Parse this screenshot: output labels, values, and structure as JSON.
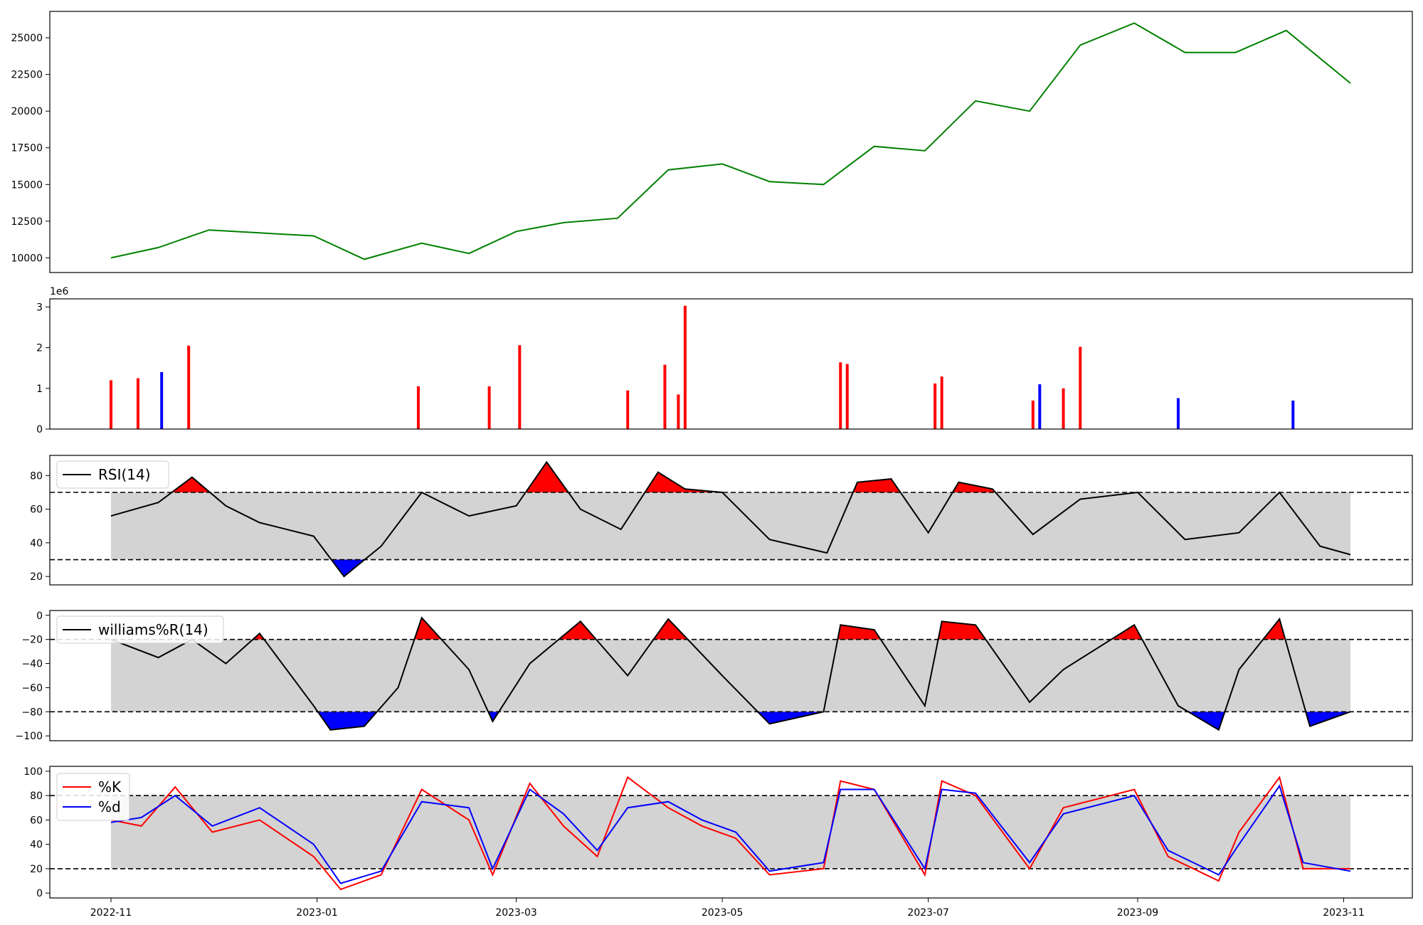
{
  "chart_data": [
    {
      "type": "line",
      "panel": "price",
      "color": "#008000",
      "ylim": [
        9000,
        26800
      ],
      "yticks": [
        10000,
        12500,
        15000,
        17500,
        20000,
        22500,
        25000
      ],
      "x": [
        "2022-11-01",
        "2022-11-15",
        "2022-11-30",
        "2022-12-15",
        "2022-12-31",
        "2023-01-15",
        "2023-02-01",
        "2023-02-15",
        "2023-03-01",
        "2023-03-15",
        "2023-03-31",
        "2023-04-15",
        "2023-05-01",
        "2023-05-15",
        "2023-05-31",
        "2023-06-15",
        "2023-06-30",
        "2023-07-15",
        "2023-07-31",
        "2023-08-15",
        "2023-08-31",
        "2023-09-15",
        "2023-09-30",
        "2023-10-15",
        "2023-11-03"
      ],
      "y": [
        10000,
        10700,
        11900,
        11700,
        11500,
        9900,
        11000,
        10300,
        11800,
        12400,
        12700,
        16000,
        16400,
        15200,
        15000,
        17600,
        17300,
        20700,
        20000,
        24500,
        26000,
        24000,
        24000,
        25500,
        21900
      ]
    },
    {
      "type": "bar",
      "panel": "volume",
      "multiplier_label": "1e6",
      "ylim": [
        0,
        3200000
      ],
      "yticks": [
        0,
        1,
        2,
        3
      ],
      "colors": {
        "up": "#ff0000",
        "down": "#0000ff",
        "flat": "#000000"
      },
      "x": [
        "2022-11-01",
        "2022-11-09",
        "2022-11-16",
        "2022-11-24",
        "2023-01-31",
        "2023-02-21",
        "2023-03-02",
        "2023-04-03",
        "2023-04-14",
        "2023-04-18",
        "2023-04-20",
        "2023-06-05",
        "2023-06-07",
        "2023-07-03",
        "2023-07-05",
        "2023-08-01",
        "2023-08-03",
        "2023-08-10",
        "2023-08-15",
        "2023-09-13",
        "2023-10-17"
      ],
      "values": [
        1200000,
        1250000,
        1400000,
        2050000,
        1050000,
        1050000,
        2060000,
        950000,
        1580000,
        850000,
        3030000,
        1640000,
        1600000,
        1120000,
        1290000,
        700000,
        1100000,
        1000000,
        2020000,
        760000,
        700000
      ],
      "value_colors": [
        "up",
        "up",
        "down",
        "up",
        "up",
        "up",
        "up",
        "up",
        "up",
        "up",
        "up",
        "up",
        "up",
        "up",
        "up",
        "up",
        "down",
        "up",
        "up",
        "down",
        "down"
      ]
    },
    {
      "type": "line",
      "panel": "rsi",
      "legend": [
        "RSI(14)"
      ],
      "ylim": [
        15,
        92
      ],
      "yticks": [
        20,
        40,
        60,
        80
      ],
      "bands": {
        "upper": 70,
        "lower": 30
      },
      "x": [
        "2022-11-01",
        "2022-11-15",
        "2022-11-25",
        "2022-12-05",
        "2022-12-15",
        "2022-12-31",
        "2023-01-09",
        "2023-01-20",
        "2023-02-01",
        "2023-02-15",
        "2023-03-01",
        "2023-03-10",
        "2023-03-20",
        "2023-04-01",
        "2023-04-12",
        "2023-04-20",
        "2023-05-01",
        "2023-05-15",
        "2023-06-01",
        "2023-06-10",
        "2023-06-20",
        "2023-07-01",
        "2023-07-10",
        "2023-07-20",
        "2023-08-01",
        "2023-08-15",
        "2023-09-01",
        "2023-09-15",
        "2023-10-01",
        "2023-10-13",
        "2023-10-25",
        "2023-11-03"
      ],
      "y": [
        56,
        64,
        79,
        62,
        52,
        44,
        20,
        38,
        70,
        56,
        62,
        88,
        60,
        48,
        82,
        72,
        70,
        42,
        34,
        76,
        78,
        46,
        76,
        72,
        45,
        66,
        70,
        42,
        46,
        70,
        38,
        33
      ]
    },
    {
      "type": "line",
      "panel": "williams",
      "legend": [
        "williams%R(14)"
      ],
      "ylim": [
        -104,
        4
      ],
      "yticks": [
        0,
        -20,
        -40,
        -60,
        -80,
        -100
      ],
      "bands": {
        "upper": -20,
        "lower": -80
      },
      "x": [
        "2022-11-01",
        "2022-11-15",
        "2022-11-25",
        "2022-12-05",
        "2022-12-15",
        "2022-12-31",
        "2023-01-05",
        "2023-01-15",
        "2023-01-25",
        "2023-02-01",
        "2023-02-15",
        "2023-02-22",
        "2023-03-05",
        "2023-03-20",
        "2023-04-03",
        "2023-04-15",
        "2023-05-01",
        "2023-05-15",
        "2023-05-31",
        "2023-06-05",
        "2023-06-15",
        "2023-06-30",
        "2023-07-05",
        "2023-07-15",
        "2023-07-31",
        "2023-08-10",
        "2023-08-31",
        "2023-09-13",
        "2023-09-25",
        "2023-10-01",
        "2023-10-13",
        "2023-10-22",
        "2023-11-03"
      ],
      "y": [
        -20,
        -35,
        -20,
        -40,
        -15,
        -75,
        -95,
        -92,
        -60,
        -2,
        -45,
        -88,
        -40,
        -5,
        -50,
        -3,
        -50,
        -90,
        -80,
        -8,
        -12,
        -75,
        -5,
        -8,
        -72,
        -45,
        -8,
        -75,
        -95,
        -45,
        -3,
        -92,
        -80
      ]
    },
    {
      "type": "line",
      "panel": "stochastic",
      "legend": [
        "%K",
        "%d"
      ],
      "ylim": [
        -4,
        104
      ],
      "yticks": [
        0,
        20,
        40,
        60,
        80,
        100
      ],
      "bands": {
        "upper": 80,
        "lower": 20
      },
      "xticks": [
        "2022-11",
        "2023-01",
        "2023-03",
        "2023-05",
        "2023-07",
        "2023-09",
        "2023-11"
      ],
      "x": [
        "2022-11-01",
        "2022-11-10",
        "2022-11-20",
        "2022-12-01",
        "2022-12-15",
        "2022-12-31",
        "2023-01-08",
        "2023-01-20",
        "2023-02-01",
        "2023-02-15",
        "2023-02-22",
        "2023-03-05",
        "2023-03-15",
        "2023-03-25",
        "2023-04-03",
        "2023-04-15",
        "2023-04-25",
        "2023-05-05",
        "2023-05-15",
        "2023-05-31",
        "2023-06-05",
        "2023-06-15",
        "2023-06-30",
        "2023-07-05",
        "2023-07-15",
        "2023-07-31",
        "2023-08-10",
        "2023-08-31",
        "2023-09-10",
        "2023-09-25",
        "2023-10-01",
        "2023-10-13",
        "2023-10-20",
        "2023-11-03"
      ],
      "series": [
        {
          "name": "%K",
          "color": "#ff0000",
          "values": [
            60,
            55,
            87,
            50,
            60,
            30,
            3,
            15,
            85,
            60,
            15,
            90,
            55,
            30,
            95,
            70,
            55,
            45,
            15,
            20,
            92,
            85,
            15,
            92,
            80,
            20,
            70,
            85,
            30,
            10,
            50,
            95,
            20,
            20
          ]
        },
        {
          "name": "%d",
          "color": "#0000ff",
          "values": [
            58,
            62,
            80,
            55,
            70,
            40,
            8,
            18,
            75,
            70,
            20,
            85,
            65,
            35,
            70,
            75,
            60,
            50,
            18,
            25,
            85,
            85,
            20,
            85,
            82,
            25,
            65,
            80,
            35,
            15,
            40,
            88,
            25,
            18
          ]
        }
      ]
    }
  ]
}
